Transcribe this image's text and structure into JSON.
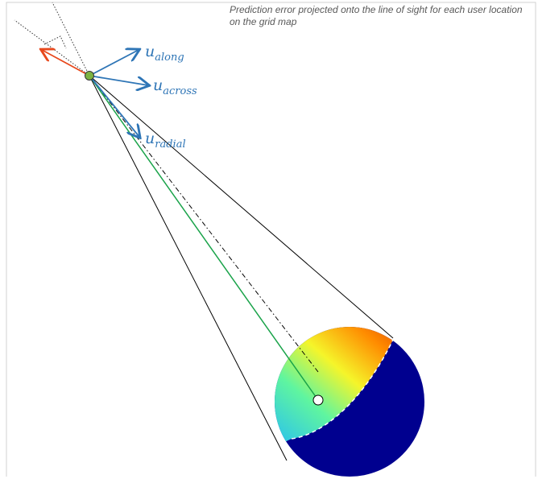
{
  "caption": "Prediction error projected onto the line of sight for each user location on the grid map",
  "vectors": [
    {
      "symbol": "u",
      "subscript": "along"
    },
    {
      "symbol": "u",
      "subscript": "across"
    },
    {
      "symbol": "u",
      "subscript": "radial"
    }
  ]
}
